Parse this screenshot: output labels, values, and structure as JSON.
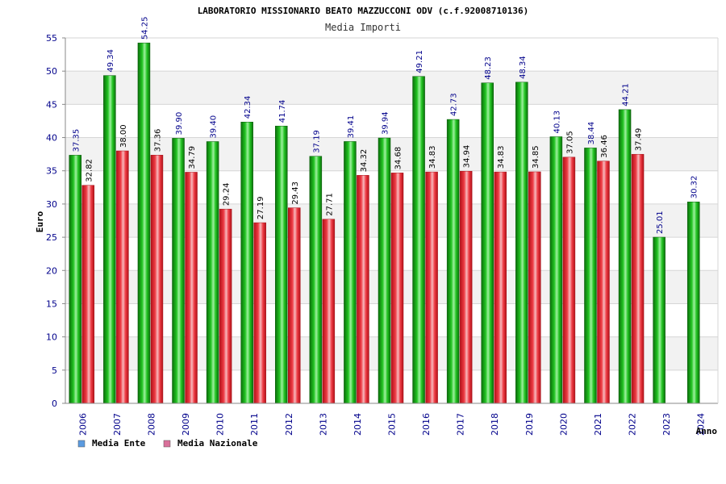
{
  "chart_data": {
    "type": "bar",
    "title": "LABORATORIO MISSIONARIO BEATO MAZZUCCONI ODV (c.f.92008710136)",
    "subtitle": "Media Importi",
    "xlabel": "Anno",
    "ylabel": "Euro",
    "ylim": [
      0,
      55
    ],
    "yticks": [
      0,
      5,
      10,
      15,
      20,
      25,
      30,
      35,
      40,
      45,
      50,
      55
    ],
    "grid": true,
    "legend_position": "bottom-left",
    "categories": [
      "2006",
      "2007",
      "2008",
      "2009",
      "2010",
      "2011",
      "2012",
      "2013",
      "2014",
      "2015",
      "2016",
      "2017",
      "2018",
      "2019",
      "2020",
      "2021",
      "2022",
      "2023",
      "2024"
    ],
    "series": [
      {
        "name": "Media Ente",
        "color": "#1fb11f",
        "legend_color": "#5b9be0",
        "values": [
          37.35,
          49.34,
          54.25,
          39.9,
          39.4,
          42.34,
          41.74,
          37.19,
          39.41,
          39.94,
          49.21,
          42.73,
          48.23,
          48.34,
          40.13,
          38.44,
          44.21,
          25.01,
          30.32
        ],
        "labels": [
          "37.35",
          "49.34",
          "54.25",
          "39.90",
          "39.40",
          "42.34",
          "41.74",
          "37.19",
          "39.41",
          "39.94",
          "49.21",
          "42.73",
          "48.23",
          "48.34",
          "40.13",
          "38.44",
          "44.21",
          "25.01",
          "30.32"
        ]
      },
      {
        "name": "Media Nazionale",
        "color": "#e8333c",
        "legend_color": "#d9709a",
        "values": [
          32.82,
          38.0,
          37.36,
          34.79,
          29.24,
          27.19,
          29.43,
          27.71,
          34.32,
          34.68,
          34.83,
          34.94,
          34.83,
          34.85,
          37.05,
          36.46,
          37.49,
          null,
          null
        ],
        "labels": [
          "32.82",
          "38.00",
          "37.36",
          "34.79",
          "29.24",
          "27.19",
          "29.43",
          "27.71",
          "34.32",
          "34.68",
          "34.83",
          "34.94",
          "34.83",
          "34.85",
          "37.05",
          "36.46",
          "37.49",
          null,
          null
        ]
      }
    ]
  }
}
